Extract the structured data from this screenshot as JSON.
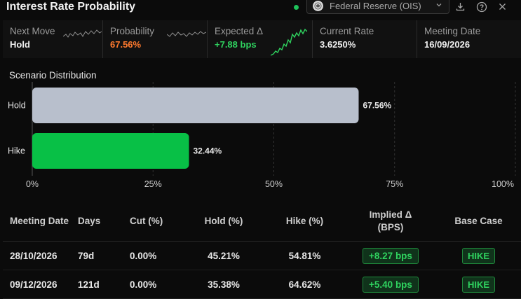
{
  "header": {
    "title": "Interest Rate Probability",
    "source_label": "Federal Reserve (OIS)",
    "live_color": "#1ec25a"
  },
  "stats": [
    {
      "label": "Next Move",
      "value": "Hold",
      "color": "#f0f0f0"
    },
    {
      "label": "Probability",
      "value": "67.56%",
      "color": "#ff7a2e"
    },
    {
      "label": "Expected Δ",
      "value": "+7.88 bps",
      "color": "#2fd35f"
    },
    {
      "label": "Current Rate",
      "value": "3.6250%",
      "color": "#f0f0f0"
    },
    {
      "label": "Meeting Date",
      "value": "16/09/2026",
      "color": "#f0f0f0"
    }
  ],
  "scenario": {
    "title": "Scenario Distribution"
  },
  "chart_data": {
    "type": "bar",
    "orientation": "horizontal",
    "categories": [
      "Hold",
      "Hike"
    ],
    "values": [
      67.56,
      32.44
    ],
    "value_labels": [
      "67.56%",
      "32.44%"
    ],
    "colors": [
      "#b8bfcc",
      "#08c046"
    ],
    "xlim": [
      0,
      100
    ],
    "xticks": [
      "0%",
      "25%",
      "50%",
      "75%",
      "100%"
    ],
    "grid": "vertical-dashed"
  },
  "table": {
    "headers": [
      "Meeting Date",
      "Days",
      "Cut (%)",
      "Hold (%)",
      "Hike (%)",
      "Implied Δ (BPS)",
      "Base Case"
    ],
    "rows": [
      {
        "date": "28/10/2026",
        "days": "79d",
        "cut": "0.00%",
        "hold": "45.21%",
        "hike": "54.81%",
        "implied": "+8.27 bps",
        "base": "HIKE"
      },
      {
        "date": "09/12/2026",
        "days": "121d",
        "cut": "0.00%",
        "hold": "35.38%",
        "hike": "64.62%",
        "implied": "+5.40 bps",
        "base": "HIKE"
      }
    ]
  }
}
